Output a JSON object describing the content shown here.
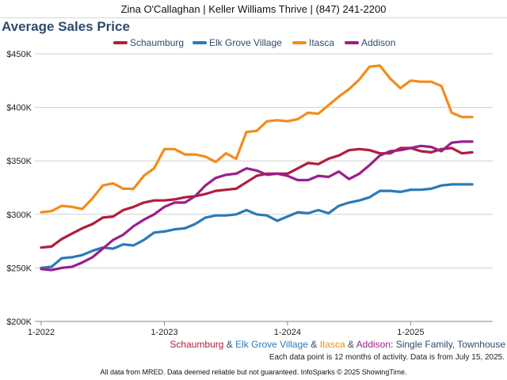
{
  "header": {
    "agent_line": "Zina O'Callaghan | Keller Williams Thrive | (847) 241-2200"
  },
  "chart_data": {
    "type": "line",
    "title": "Average Sales Price",
    "xlabel": "",
    "ylabel": "",
    "x_start": "2022-01",
    "x_ticks": [
      "1-2022",
      "1-2023",
      "1-2024",
      "1-2025"
    ],
    "y_ticks": [
      "$200K",
      "$250K",
      "$300K",
      "$350K",
      "$400K",
      "$450K"
    ],
    "ylim": [
      200000,
      450000
    ],
    "grid": true,
    "legend_position": "top",
    "series": [
      {
        "name": "Schaumburg",
        "color": "#b01e3c",
        "values": [
          269000,
          270000,
          277000,
          282000,
          287000,
          291000,
          297000,
          298000,
          304000,
          307000,
          311000,
          313000,
          313000,
          314000,
          316000,
          317000,
          319000,
          322000,
          323000,
          324000,
          330000,
          336000,
          338000,
          338000,
          338000,
          343000,
          348000,
          347000,
          352000,
          355000,
          360000,
          361000,
          360000,
          357000,
          357000,
          362000,
          362000,
          359000,
          358000,
          361000,
          362000,
          357000,
          358000
        ]
      },
      {
        "name": "Elk Grove Village",
        "color": "#2a7ab8",
        "values": [
          250000,
          251000,
          259000,
          260000,
          262000,
          266000,
          269000,
          268000,
          272000,
          271000,
          276000,
          283000,
          284000,
          286000,
          287000,
          291000,
          297000,
          299000,
          299000,
          300000,
          304000,
          300000,
          299000,
          294000,
          298000,
          302000,
          301000,
          304000,
          301000,
          308000,
          311000,
          313000,
          316000,
          322000,
          322000,
          321000,
          323000,
          323000,
          324000,
          327000,
          328000,
          328000,
          328000
        ]
      },
      {
        "name": "Itasca",
        "color": "#f28c1a",
        "values": [
          302000,
          303000,
          308000,
          307000,
          305000,
          315000,
          327000,
          329000,
          324000,
          324000,
          336000,
          343000,
          361000,
          361000,
          356000,
          356000,
          354000,
          349000,
          357000,
          352000,
          377000,
          378000,
          387000,
          388000,
          387000,
          389000,
          395000,
          394000,
          402000,
          410000,
          417000,
          426000,
          438000,
          439000,
          427000,
          418000,
          425000,
          424000,
          424000,
          420000,
          395000,
          391000,
          391000
        ]
      },
      {
        "name": "Addison",
        "color": "#9b1f8a",
        "values": [
          249000,
          248000,
          250000,
          251000,
          255000,
          260000,
          268000,
          276000,
          281000,
          289000,
          295000,
          300000,
          307000,
          311000,
          311000,
          317000,
          327000,
          334000,
          337000,
          338000,
          343000,
          341000,
          337000,
          338000,
          336000,
          332000,
          332000,
          336000,
          335000,
          340000,
          333000,
          338000,
          346000,
          355000,
          359000,
          360000,
          362000,
          364000,
          363000,
          359000,
          367000,
          368000,
          368000
        ]
      }
    ],
    "subtitle_parts": [
      {
        "text": "Schaumburg",
        "color": "#b01e3c"
      },
      {
        "text": " & ",
        "color": "#2f4a6d"
      },
      {
        "text": "Elk Grove Village",
        "color": "#2a7ab8"
      },
      {
        "text": " & ",
        "color": "#2f4a6d"
      },
      {
        "text": "Itasca",
        "color": "#f28c1a"
      },
      {
        "text": " & ",
        "color": "#2f4a6d"
      },
      {
        "text": "Addison",
        "color": "#9b1f8a"
      },
      {
        "text": ": Single Family, Townhouse",
        "color": "#2f4a6d"
      }
    ]
  },
  "notes": {
    "line1": "Each data point is 12 months of activity. Data is from July 15, 2025.",
    "disclaimer": "All data from MRED. Data deemed reliable but not guaranteed. InfoSparks © 2025 ShowingTime."
  }
}
